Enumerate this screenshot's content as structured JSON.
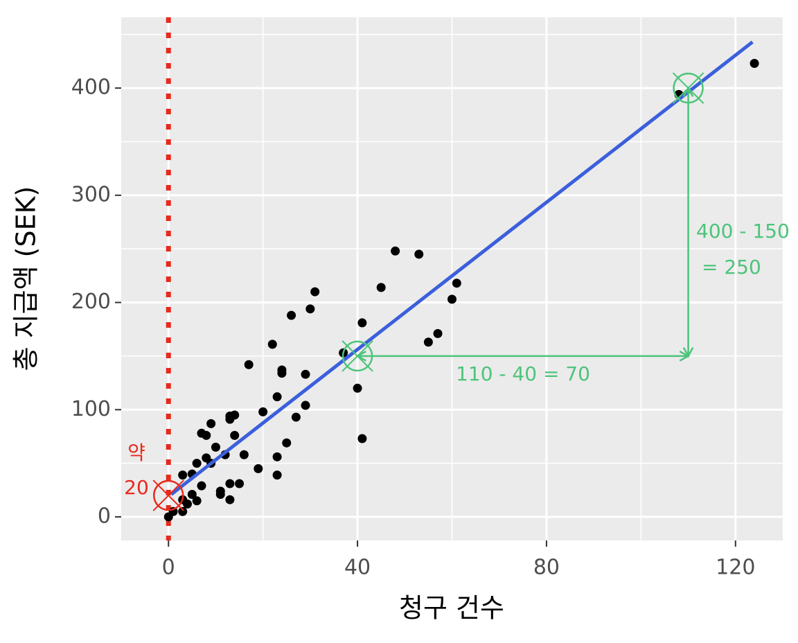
{
  "chart_data": {
    "type": "scatter",
    "x_label": "청구 건수",
    "y_label": "총 지급액 (SEK)",
    "xlim": [
      -10,
      130
    ],
    "ylim": [
      -22,
      466
    ],
    "xticks": [
      0,
      40,
      80,
      120
    ],
    "yticks": [
      0,
      100,
      200,
      300,
      400
    ],
    "minor_xticks": [
      20,
      60,
      100
    ],
    "minor_yticks": [
      50,
      150,
      250,
      350,
      450
    ],
    "grid": true,
    "color": "#000000",
    "x": [
      0,
      1,
      3,
      4,
      3,
      6,
      5,
      3,
      5,
      7,
      6,
      8,
      9,
      10,
      7,
      8,
      9,
      12,
      11,
      11,
      13,
      13,
      15,
      13,
      13,
      14,
      14,
      16,
      19,
      17,
      20,
      22,
      23,
      24,
      24,
      23,
      23,
      25,
      27,
      29,
      29,
      26,
      30,
      31,
      37,
      40,
      41,
      41,
      45,
      48,
      53,
      55,
      57,
      60,
      61,
      108,
      124
    ],
    "values": [
      0,
      5,
      5,
      12,
      16,
      15,
      21,
      39,
      40,
      29,
      50,
      55,
      50,
      65,
      78,
      76,
      87,
      58,
      24,
      21,
      16,
      31,
      31,
      91,
      94,
      95,
      76,
      58,
      45,
      142,
      98,
      161,
      112,
      137,
      134,
      56,
      39,
      69,
      93,
      133,
      104,
      188,
      194,
      210,
      153,
      120,
      181,
      73,
      214,
      248,
      245,
      163,
      171,
      203,
      218,
      394,
      423
    ],
    "fit": {
      "color": "#3b5fdc",
      "x": [
        0.6,
        123.6
      ],
      "values": [
        21,
        443
      ]
    },
    "reference_line": {
      "x": 0,
      "color": "#e8291c"
    },
    "marked_points": [
      {
        "x": 0,
        "y": 20,
        "color": "#e8291c"
      },
      {
        "x": 40,
        "y": 150,
        "color": "#4cc47a"
      },
      {
        "x": 110,
        "y": 400,
        "color": "#4cc47a"
      }
    ],
    "arrows": [
      {
        "x": [
          40,
          110
        ],
        "y": [
          150,
          150
        ],
        "color": "#4cc47a"
      },
      {
        "x": [
          110,
          110
        ],
        "y": [
          400,
          150
        ],
        "color": "#4cc47a"
      }
    ],
    "annotations": [
      {
        "lines": [
          "약",
          "20"
        ],
        "color": "#e8291c"
      },
      {
        "lines": [
          "110 - 40 = 70"
        ],
        "color": "#4cc47a"
      },
      {
        "lines": [
          "400 - 150",
          "= 250"
        ],
        "color": "#4cc47a"
      }
    ]
  }
}
